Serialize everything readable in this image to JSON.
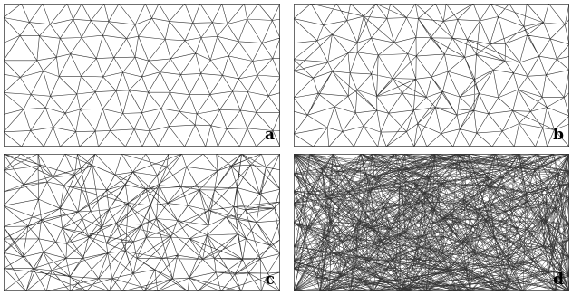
{
  "panels": [
    {
      "label": "a"
    },
    {
      "label": "b"
    },
    {
      "label": "c"
    },
    {
      "label": "d"
    }
  ],
  "colors": {
    "mesh": "#333333",
    "background": "#ffffff",
    "label": "#000000"
  }
}
